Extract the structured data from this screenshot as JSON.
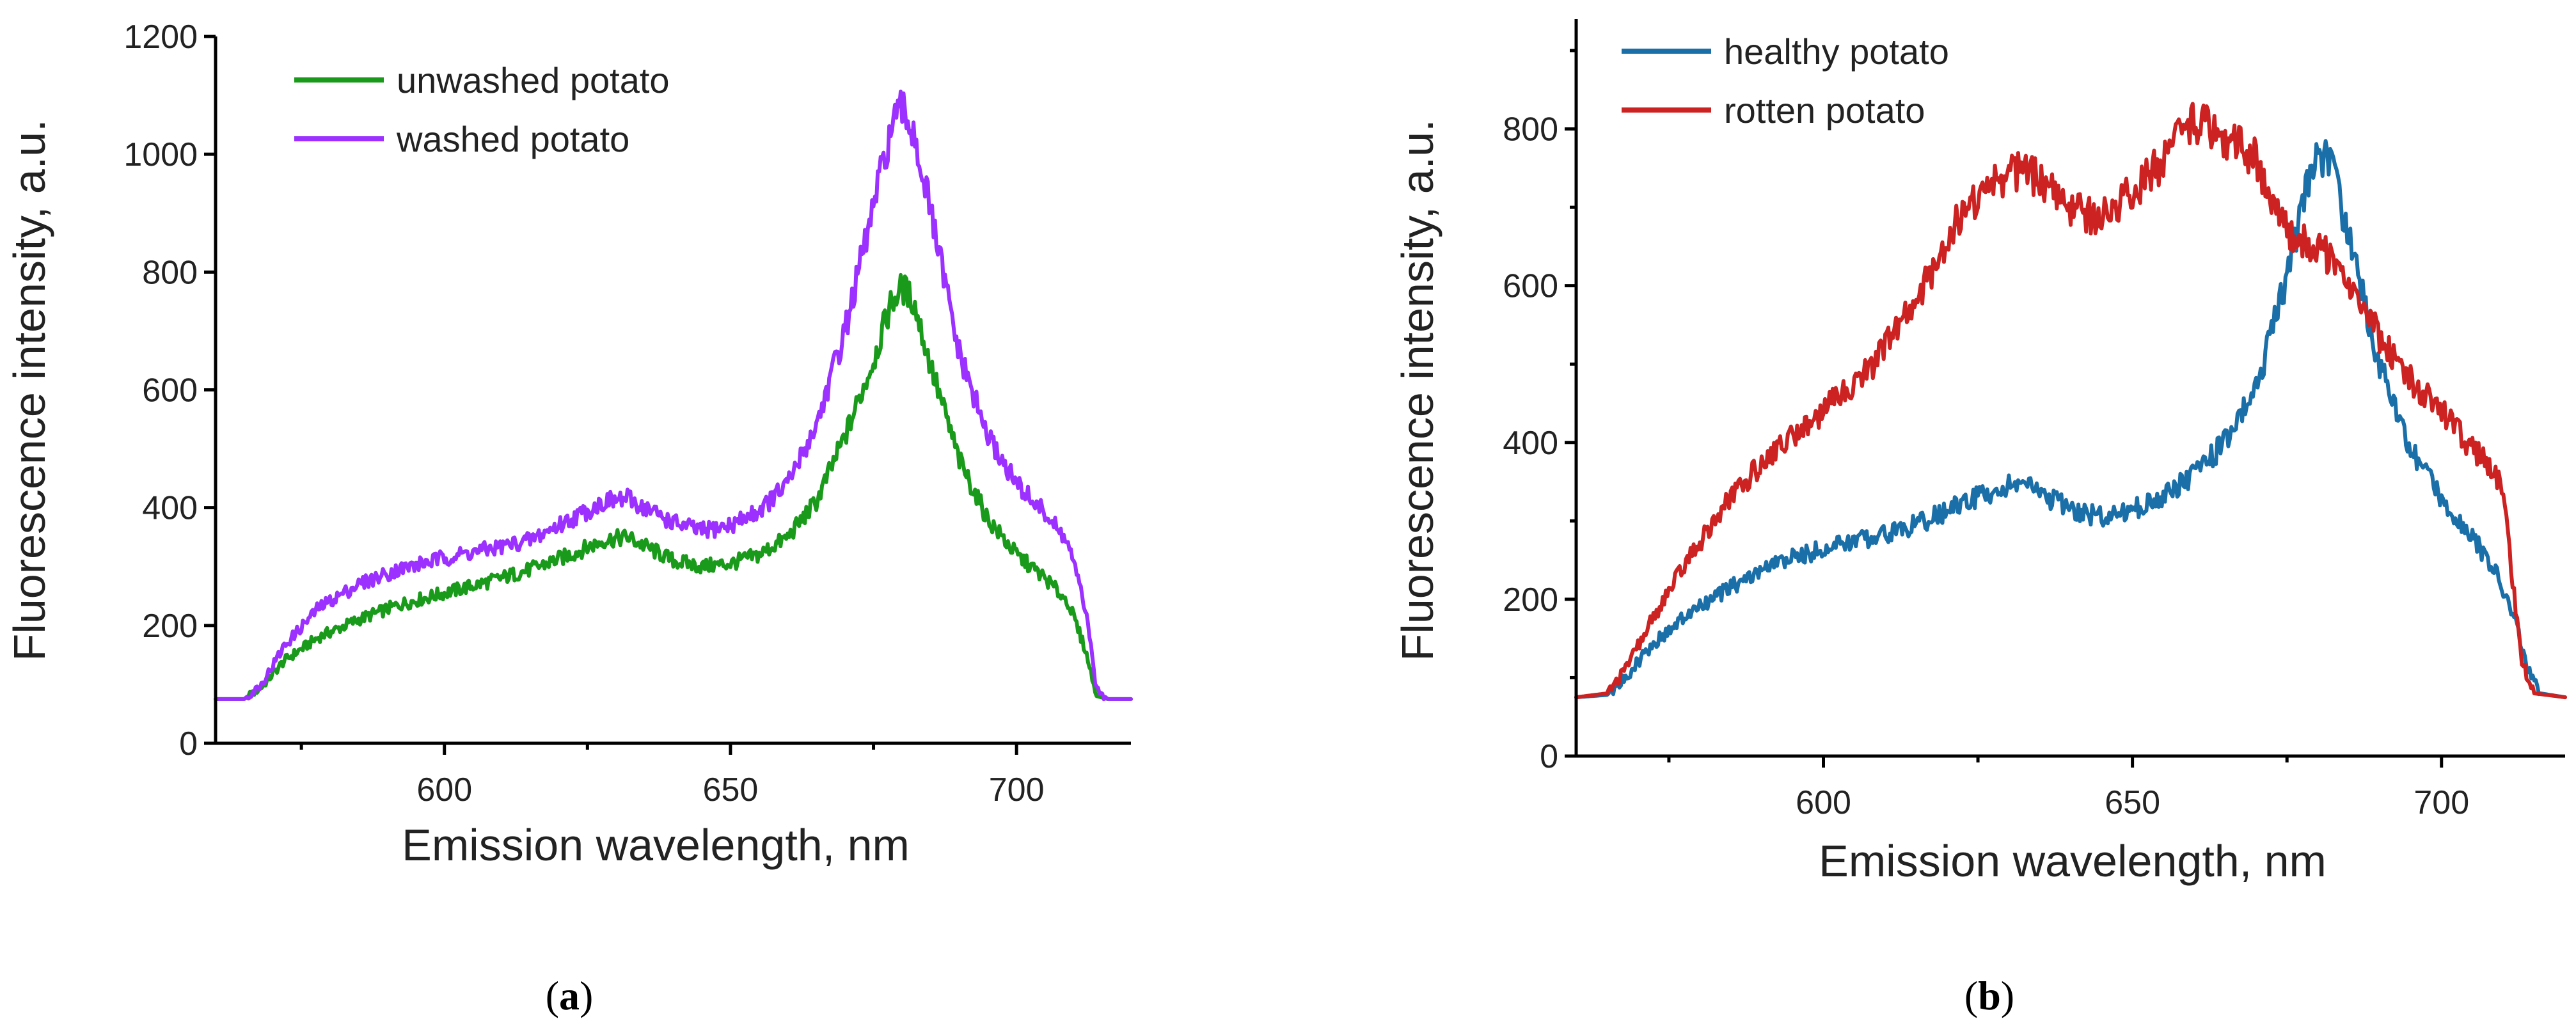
{
  "chart_data": [
    {
      "id": "a",
      "type": "line",
      "panel_label": "a",
      "xlabel": "Emission wavelength, nm",
      "ylabel": "Fluorescence intensity, a.u.",
      "xlim": [
        560,
        720
      ],
      "ylim": [
        0,
        1200
      ],
      "xticks": [
        600,
        650,
        700
      ],
      "yticks": [
        0,
        200,
        400,
        600,
        800,
        1000,
        1200
      ],
      "minor_yticks": false,
      "legend_position": "top-left",
      "series": [
        {
          "name": "unwashed potato",
          "color": "#1a9a1a",
          "points": [
            [
              560,
              75
            ],
            [
              565,
              75
            ],
            [
              568,
              95
            ],
            [
              572,
              140
            ],
            [
              578,
              180
            ],
            [
              585,
              210
            ],
            [
              592,
              235
            ],
            [
              600,
              255
            ],
            [
              608,
              275
            ],
            [
              615,
              295
            ],
            [
              622,
              320
            ],
            [
              628,
              345
            ],
            [
              632,
              350
            ],
            [
              636,
              330
            ],
            [
              640,
              310
            ],
            [
              645,
              300
            ],
            [
              650,
              305
            ],
            [
              655,
              320
            ],
            [
              660,
              350
            ],
            [
              665,
              410
            ],
            [
              670,
              520
            ],
            [
              675,
              650
            ],
            [
              678,
              745
            ],
            [
              680,
              775
            ],
            [
              682,
              750
            ],
            [
              685,
              640
            ],
            [
              690,
              480
            ],
            [
              695,
              380
            ],
            [
              700,
              320
            ],
            [
              705,
              280
            ],
            [
              709,
              240
            ],
            [
              712,
              160
            ],
            [
              714,
              80
            ],
            [
              716,
              75
            ],
            [
              720,
              75
            ]
          ]
        },
        {
          "name": "washed potato",
          "color": "#9b30ff",
          "points": [
            [
              560,
              75
            ],
            [
              565,
              75
            ],
            [
              568,
              100
            ],
            [
              572,
              165
            ],
            [
              578,
              230
            ],
            [
              585,
              270
            ],
            [
              592,
              295
            ],
            [
              600,
              315
            ],
            [
              608,
              330
            ],
            [
              615,
              345
            ],
            [
              622,
              380
            ],
            [
              628,
              410
            ],
            [
              632,
              415
            ],
            [
              636,
              395
            ],
            [
              640,
              375
            ],
            [
              645,
              360
            ],
            [
              650,
              370
            ],
            [
              655,
              395
            ],
            [
              660,
              440
            ],
            [
              665,
              540
            ],
            [
              670,
              700
            ],
            [
              675,
              910
            ],
            [
              678,
              1040
            ],
            [
              680,
              1075
            ],
            [
              682,
              1040
            ],
            [
              685,
              900
            ],
            [
              690,
              660
            ],
            [
              695,
              520
            ],
            [
              700,
              440
            ],
            [
              705,
              390
            ],
            [
              709,
              340
            ],
            [
              712,
              230
            ],
            [
              714,
              90
            ],
            [
              716,
              75
            ],
            [
              720,
              75
            ]
          ]
        }
      ]
    },
    {
      "id": "b",
      "type": "line",
      "panel_label": "b",
      "xlabel": "Emission wavelength, nm",
      "ylabel": "Fluorescence intensity, a.u.",
      "xlim": [
        560,
        720
      ],
      "ylim": [
        0,
        940
      ],
      "xticks": [
        600,
        650,
        700
      ],
      "yticks": [
        0,
        200,
        400,
        600,
        800
      ],
      "minor_yticks": true,
      "legend_position": "top-left",
      "series": [
        {
          "name": "healthy potato",
          "color": "#1a6fa8",
          "points": [
            [
              560,
              75
            ],
            [
              565,
              78
            ],
            [
              568,
              100
            ],
            [
              572,
              140
            ],
            [
              578,
              180
            ],
            [
              585,
              215
            ],
            [
              592,
              245
            ],
            [
              600,
              265
            ],
            [
              608,
              280
            ],
            [
              615,
              295
            ],
            [
              622,
              320
            ],
            [
              628,
              340
            ],
            [
              632,
              350
            ],
            [
              636,
              330
            ],
            [
              640,
              315
            ],
            [
              645,
              305
            ],
            [
              650,
              315
            ],
            [
              655,
              330
            ],
            [
              660,
              360
            ],
            [
              665,
              400
            ],
            [
              670,
              470
            ],
            [
              675,
              610
            ],
            [
              678,
              720
            ],
            [
              680,
              770
            ],
            [
              682,
              760
            ],
            [
              685,
              660
            ],
            [
              690,
              500
            ],
            [
              695,
              390
            ],
            [
              700,
              330
            ],
            [
              705,
              280
            ],
            [
              709,
              230
            ],
            [
              712,
              170
            ],
            [
              714,
              110
            ],
            [
              716,
              80
            ],
            [
              720,
              75
            ]
          ]
        },
        {
          "name": "rotten potato",
          "color": "#cc2222",
          "points": [
            [
              560,
              75
            ],
            [
              565,
              80
            ],
            [
              568,
              110
            ],
            [
              572,
              170
            ],
            [
              578,
              250
            ],
            [
              585,
              330
            ],
            [
              592,
              390
            ],
            [
              600,
              440
            ],
            [
              608,
              500
            ],
            [
              615,
              580
            ],
            [
              622,
              690
            ],
            [
              628,
              735
            ],
            [
              632,
              750
            ],
            [
              636,
              730
            ],
            [
              640,
              700
            ],
            [
              645,
              685
            ],
            [
              650,
              720
            ],
            [
              655,
              760
            ],
            [
              660,
              810
            ],
            [
              665,
              790
            ],
            [
              670,
              760
            ],
            [
              673,
              700
            ],
            [
              676,
              660
            ],
            [
              680,
              650
            ],
            [
              684,
              620
            ],
            [
              688,
              560
            ],
            [
              692,
              510
            ],
            [
              696,
              470
            ],
            [
              700,
              440
            ],
            [
              704,
              400
            ],
            [
              708,
              370
            ],
            [
              710,
              340
            ],
            [
              711,
              260
            ],
            [
              713,
              120
            ],
            [
              715,
              80
            ],
            [
              720,
              75
            ]
          ]
        }
      ]
    }
  ]
}
